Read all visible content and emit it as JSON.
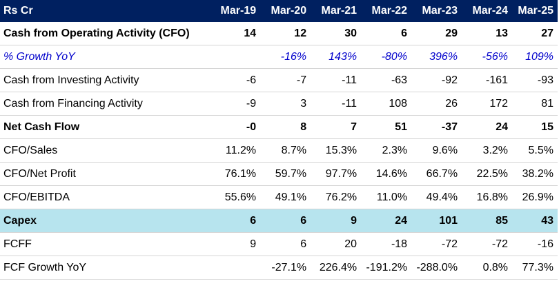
{
  "header": {
    "label": "Rs Cr",
    "years": [
      "Mar-19",
      "Mar-20",
      "Mar-21",
      "Mar-22",
      "Mar-23",
      "Mar-24",
      "Mar-25"
    ]
  },
  "rows": [
    {
      "label": "Cash from Operating Activity (CFO)",
      "style": "bold",
      "values": [
        "14",
        "12",
        "30",
        "6",
        "29",
        "13",
        "27"
      ]
    },
    {
      "label": "% Growth YoY",
      "style": "growth",
      "values": [
        "",
        "-16%",
        "143%",
        "-80%",
        "396%",
        "-56%",
        "109%"
      ]
    },
    {
      "label": "Cash from Investing Activity",
      "style": "normal",
      "values": [
        "-6",
        "-7",
        "-11",
        "-63",
        "-92",
        "-161",
        "-93"
      ]
    },
    {
      "label": "Cash from Financing Activity",
      "style": "normal",
      "values": [
        "-9",
        "3",
        "-11",
        "108",
        "26",
        "172",
        "81"
      ]
    },
    {
      "label": "Net Cash Flow",
      "style": "bold",
      "values": [
        "-0",
        "8",
        "7",
        "51",
        "-37",
        "24",
        "15"
      ]
    },
    {
      "label": "CFO/Sales",
      "style": "normal",
      "values": [
        "11.2%",
        "8.7%",
        "15.3%",
        "2.3%",
        "9.6%",
        "3.2%",
        "5.5%"
      ]
    },
    {
      "label": "CFO/Net Profit",
      "style": "normal",
      "values": [
        "76.1%",
        "59.7%",
        "97.7%",
        "14.6%",
        "66.7%",
        "22.5%",
        "38.2%"
      ]
    },
    {
      "label": "CFO/EBITDA",
      "style": "normal",
      "values": [
        "55.6%",
        "49.1%",
        "76.2%",
        "11.0%",
        "49.4%",
        "16.8%",
        "26.9%"
      ]
    },
    {
      "label": "Capex",
      "style": "highlight",
      "values": [
        "6",
        "6",
        "9",
        "24",
        "101",
        "85",
        "43"
      ]
    },
    {
      "label": "FCFF",
      "style": "normal",
      "values": [
        "9",
        "6",
        "20",
        "-18",
        "-72",
        "-72",
        "-16"
      ]
    },
    {
      "label": "FCF Growth YoY",
      "style": "normal",
      "values": [
        "",
        "-27.1%",
        "226.4%",
        "-191.2%",
        "-288.0%",
        "0.8%",
        "77.3%"
      ]
    }
  ],
  "colors": {
    "header_bg": "#002060",
    "header_text": "#ffffff",
    "growth_text": "#0000cc",
    "highlight_bg": "#b7e4ee"
  }
}
